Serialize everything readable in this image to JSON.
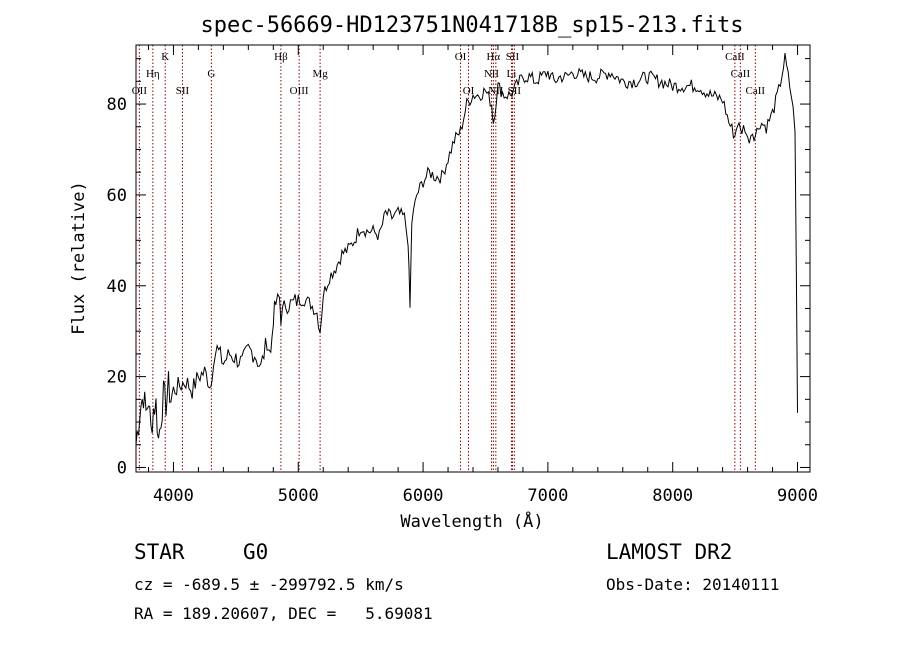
{
  "chart_data": {
    "type": "line",
    "title": "spec-56669-HD123751N041718B_sp15-213.fits",
    "xlabel": "Wavelength (Å)",
    "ylabel": "Flux (relative)",
    "xlim": [
      3700,
      9100
    ],
    "ylim": [
      -1,
      93
    ],
    "xticks": [
      {
        "value": 4000,
        "label": "4000"
      },
      {
        "value": 5000,
        "label": "5000"
      },
      {
        "value": 6000,
        "label": "6000"
      },
      {
        "value": 7000,
        "label": "7000"
      },
      {
        "value": 8000,
        "label": "8000"
      },
      {
        "value": 9000,
        "label": "9000"
      }
    ],
    "yticks": [
      {
        "value": 0,
        "label": "0"
      },
      {
        "value": 20,
        "label": "20"
      },
      {
        "value": 40,
        "label": "40"
      },
      {
        "value": 60,
        "label": "60"
      },
      {
        "value": 80,
        "label": "80"
      }
    ],
    "grid": false,
    "line_color": "#000000",
    "marker_color": "#8b0000",
    "spectrum": {
      "x": [
        3700,
        3720,
        3740,
        3760,
        3780,
        3800,
        3820,
        3840,
        3860,
        3880,
        3900,
        3920,
        3940,
        3960,
        3980,
        4000,
        4050,
        4100,
        4150,
        4200,
        4250,
        4300,
        4320,
        4350,
        4400,
        4450,
        4500,
        4550,
        4600,
        4650,
        4700,
        4750,
        4780,
        4800,
        4820,
        4850,
        4861,
        4900,
        4950,
        5000,
        5050,
        5100,
        5150,
        5175,
        5200,
        5250,
        5300,
        5350,
        5400,
        5450,
        5500,
        5550,
        5600,
        5650,
        5700,
        5750,
        5800,
        5850,
        5880,
        5895,
        5910,
        5950,
        6000,
        6050,
        6100,
        6150,
        6200,
        6250,
        6300,
        6350,
        6400,
        6450,
        6500,
        6550,
        6563,
        6600,
        6650,
        6700,
        6750,
        6800,
        6850,
        6900,
        6950,
        7000,
        7050,
        7100,
        7150,
        7200,
        7300,
        7400,
        7500,
        7600,
        7700,
        7800,
        7900,
        8000,
        8100,
        8200,
        8300,
        8400,
        8450,
        8498,
        8520,
        8542,
        8580,
        8600,
        8640,
        8662,
        8700,
        8750,
        8800,
        8850,
        8900,
        8950,
        8980,
        9000
      ],
      "y": [
        5,
        10,
        14,
        16,
        12,
        15,
        8,
        13,
        14,
        6,
        11,
        16,
        14,
        18,
        15,
        17,
        18,
        19,
        17,
        20,
        21,
        18,
        24,
        26,
        23,
        25,
        24,
        23,
        26,
        25,
        22,
        28,
        25,
        33,
        36,
        37,
        33,
        36,
        36,
        37,
        37,
        36,
        34,
        30,
        38,
        42,
        44,
        47,
        48,
        50,
        53,
        52,
        52,
        51,
        56,
        55,
        56,
        55,
        50,
        35,
        54,
        60,
        63,
        65,
        64,
        64,
        68,
        72,
        74,
        80,
        82,
        82,
        83,
        80,
        76,
        84,
        82,
        82,
        84,
        86,
        86,
        85,
        86,
        87,
        85,
        86,
        86,
        87,
        86,
        86,
        87,
        85,
        85,
        86,
        85,
        84,
        84,
        84,
        82,
        81,
        76,
        73,
        76,
        74,
        75,
        72,
        74,
        73,
        76,
        75,
        78,
        83,
        90,
        82,
        75,
        12
      ]
    },
    "line_markers": [
      {
        "label": "OII",
        "x": 3727,
        "row": 3
      },
      {
        "label": "Hη",
        "x": 3835,
        "row": 2
      },
      {
        "label": "K",
        "x": 3934,
        "row": 1
      },
      {
        "label": "SII",
        "x": 4072,
        "row": 3
      },
      {
        "label": "G",
        "x": 4304,
        "row": 2
      },
      {
        "label": "Hβ",
        "x": 4861,
        "row": 1
      },
      {
        "label": "OIII",
        "x": 5007,
        "row": 3
      },
      {
        "label": "Mg",
        "x": 5175,
        "row": 2
      },
      {
        "label": "OI",
        "x": 6300,
        "row": 1
      },
      {
        "label": "OI",
        "x": 6364,
        "row": 3
      },
      {
        "label": "Hα",
        "x": 6563,
        "row": 1
      },
      {
        "label": "NII",
        "x": 6548,
        "row": 2
      },
      {
        "label": "NII",
        "x": 6583,
        "row": 3
      },
      {
        "label": "SII",
        "x": 6716,
        "row": 1
      },
      {
        "label": "Li",
        "x": 6708,
        "row": 2
      },
      {
        "label": "SII",
        "x": 6731,
        "row": 3
      },
      {
        "label": "CaII",
        "x": 8498,
        "row": 1
      },
      {
        "label": "CaII",
        "x": 8542,
        "row": 2
      },
      {
        "label": "CaII",
        "x": 8662,
        "row": 3
      }
    ]
  },
  "footer": {
    "class_label": "STAR",
    "subclass": "G0",
    "survey": "LAMOST DR2",
    "cz_line": "cz = -689.5 ± -299792.5 km/s",
    "obs_date": "Obs-Date: 20140111",
    "radec_line": "RA = 189.20607, DEC =   5.69081"
  }
}
